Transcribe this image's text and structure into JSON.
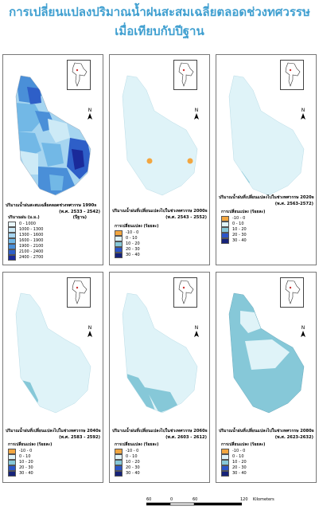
{
  "title": {
    "line1": "การเปลี่ยนแปลงปริมาณน้ำฝนสะสมเฉลี่ยตลอดช่วงทศวรรษ",
    "line2": "เมื่อเทียบกับปีฐาน"
  },
  "north_label": "N",
  "base_panel": {
    "caption_left": "ปริมาณน้ำฝนสะสมเฉลี่ยตลอดช่วงทศวรรษ 1990s",
    "caption_right1": "(พ.ศ. 2533 - 2542)",
    "caption_right2": "(ปีฐาน)",
    "legend_title": "ปริมาณฝน (ม.ม.)",
    "legend": [
      {
        "label": "0 - 1000",
        "color": "#e8f6fb"
      },
      {
        "label": "1000 - 1300",
        "color": "#cdeaf6"
      },
      {
        "label": "1300 - 1600",
        "color": "#a6d5f0"
      },
      {
        "label": "1600 - 1900",
        "color": "#72b8e6"
      },
      {
        "label": "1900 - 2100",
        "color": "#4a8fd8"
      },
      {
        "label": "2100 - 2400",
        "color": "#2e5fc8"
      },
      {
        "label": "2400 - 2700",
        "color": "#1a2a9a"
      }
    ]
  },
  "change_legend_title": "การเปลี่ยนแปลง (ร้อยละ)",
  "change_legend": [
    {
      "label": "-10 - 0",
      "color": "#f2a640"
    },
    {
      "label": "0 - 10",
      "color": "#dff3f8"
    },
    {
      "label": "10 - 20",
      "color": "#86c8d8"
    },
    {
      "label": "20 - 30",
      "color": "#2b55c8"
    },
    {
      "label": "30 - 40",
      "color": "#16237a"
    }
  ],
  "panels": [
    {
      "caption_left": "ปริมาณน้ำฝนที่เปลี่ยนแปลงไปในช่วงทศวรรษ 2000s",
      "caption_right": "(พ.ศ. 2543 - 2552)"
    },
    {
      "caption_left": "ปริมาณน้ำฝนที่เปลี่ยนแปลงไปในช่วงทศวรรษ 2020s",
      "caption_right": "(พ.ศ. 2563-2572)"
    },
    {
      "caption_left": "ปริมาณน้ำฝนที่เปลี่ยนแปลงไปในช่วงทศวรรษ 2040s",
      "caption_right": "(พ.ศ. 2583 - 2592)"
    },
    {
      "caption_left": "ปริมาณน้ำฝนที่เปลี่ยนแปลงไปในช่วงทศวรรษ 2060s",
      "caption_right": "(พ.ศ. 2603 - 2612)"
    },
    {
      "caption_left": "ปริมาณน้ำฝนที่เปลี่ยนแปลงไปในช่วงทศวรรษ 2080s",
      "caption_right": "(พ.ศ. 2623-2632)"
    }
  ],
  "scale_bar": {
    "ticks": [
      "60",
      "0",
      "60",
      "120"
    ],
    "unit": "Kilometers"
  }
}
